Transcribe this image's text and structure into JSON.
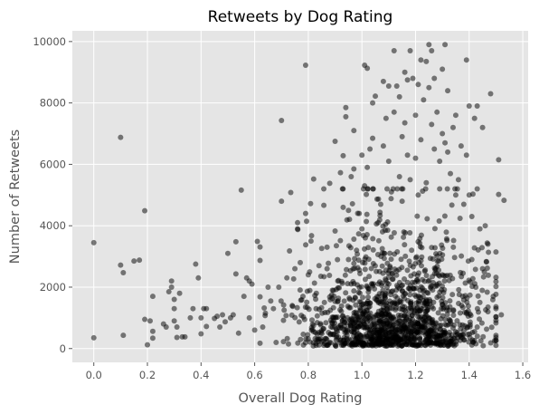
{
  "chart_data": {
    "type": "scatter",
    "title": "Retweets by Dog Rating",
    "xlabel": "Overall Dog Rating",
    "ylabel": "Number of Retweets",
    "xlim": [
      -0.08,
      1.62
    ],
    "ylim": [
      -450,
      10350
    ],
    "xticks": [
      0.0,
      0.2,
      0.4,
      0.6,
      0.8,
      1.0,
      1.2,
      1.4,
      1.6
    ],
    "xtick_labels": [
      "0.0",
      "0.2",
      "0.4",
      "0.6",
      "0.8",
      "1.0",
      "1.2",
      "1.4",
      "1.6"
    ],
    "yticks": [
      0,
      2000,
      4000,
      6000,
      8000,
      10000
    ],
    "ytick_labels": [
      "0",
      "2000",
      "4000",
      "6000",
      "8000",
      "10000"
    ],
    "grid": true,
    "colors": {
      "background": "#e5e5e5",
      "grid": "#ffffff",
      "marker": "#000000",
      "marker_alpha": 0.5
    },
    "series": [
      {
        "name": "retweets",
        "points": [
          [
            0.0,
            3450
          ],
          [
            0.0,
            350
          ],
          [
            0.1,
            6880
          ],
          [
            0.1,
            2720
          ],
          [
            0.11,
            2470
          ],
          [
            0.11,
            430
          ],
          [
            0.15,
            2850
          ],
          [
            0.17,
            2880
          ],
          [
            0.19,
            4490
          ],
          [
            0.19,
            950
          ],
          [
            0.2,
            120
          ],
          [
            0.21,
            900
          ],
          [
            0.22,
            560
          ],
          [
            0.22,
            340
          ],
          [
            0.22,
            1700
          ],
          [
            0.26,
            800
          ],
          [
            0.27,
            700
          ],
          [
            0.28,
            1850
          ],
          [
            0.29,
            2000
          ],
          [
            0.29,
            2200
          ],
          [
            0.3,
            1600
          ],
          [
            0.3,
            1300
          ],
          [
            0.3,
            900
          ],
          [
            0.31,
            360
          ],
          [
            0.31,
            700
          ],
          [
            0.32,
            1800
          ],
          [
            0.33,
            380
          ],
          [
            0.34,
            380
          ],
          [
            0.36,
            1000
          ],
          [
            0.37,
            1300
          ],
          [
            0.38,
            2750
          ],
          [
            0.39,
            2300
          ],
          [
            0.4,
            480
          ],
          [
            0.4,
            1000
          ],
          [
            0.41,
            1300
          ],
          [
            0.42,
            1300
          ],
          [
            0.42,
            720
          ],
          [
            0.45,
            980
          ],
          [
            0.46,
            1050
          ],
          [
            0.47,
            700
          ],
          [
            0.48,
            1100
          ],
          [
            0.49,
            870
          ],
          [
            0.5,
            3100
          ],
          [
            0.51,
            1000
          ],
          [
            0.52,
            1100
          ],
          [
            0.53,
            2430
          ],
          [
            0.53,
            3480
          ],
          [
            0.54,
            500
          ],
          [
            0.55,
            5160
          ],
          [
            0.56,
            1700
          ],
          [
            0.57,
            2300
          ],
          [
            0.58,
            2200
          ],
          [
            0.58,
            1000
          ],
          [
            0.59,
            2100
          ],
          [
            0.6,
            600
          ],
          [
            0.61,
            3490
          ],
          [
            0.62,
            3310
          ],
          [
            0.63,
            700
          ],
          [
            0.64,
            1150
          ],
          [
            0.65,
            2000
          ],
          [
            0.66,
            1550
          ],
          [
            0.67,
            1300
          ],
          [
            0.68,
            200
          ],
          [
            0.69,
            2000
          ],
          [
            0.7,
            4800
          ],
          [
            0.7,
            7430
          ],
          [
            0.71,
            1250
          ],
          [
            0.72,
            2300
          ],
          [
            0.73,
            3180
          ],
          [
            0.74,
            1400
          ],
          [
            0.75,
            2600
          ],
          [
            0.76,
            3900
          ],
          [
            0.76,
            4100
          ],
          [
            0.77,
            2800
          ],
          [
            0.78,
            1700
          ],
          [
            0.79,
            4400
          ],
          [
            0.79,
            9230
          ],
          [
            0.8,
            2400
          ],
          [
            0.81,
            3500
          ],
          [
            0.82,
            5520
          ],
          [
            0.83,
            1800
          ],
          [
            0.84,
            2700
          ],
          [
            0.85,
            3260
          ],
          [
            0.86,
            1500
          ],
          [
            0.87,
            3300
          ],
          [
            0.87,
            2600
          ],
          [
            0.88,
            5380
          ],
          [
            0.89,
            1900
          ],
          [
            0.9,
            3830
          ],
          [
            0.9,
            6750
          ],
          [
            0.91,
            2200
          ],
          [
            0.92,
            5730
          ],
          [
            0.93,
            6280
          ],
          [
            0.93,
            4600
          ],
          [
            0.94,
            7850
          ],
          [
            0.94,
            7550
          ],
          [
            0.95,
            2900
          ],
          [
            0.95,
            4500
          ],
          [
            0.96,
            5600
          ],
          [
            0.97,
            5850
          ],
          [
            0.97,
            7100
          ],
          [
            0.98,
            3200
          ],
          [
            0.99,
            4400
          ],
          [
            1.0,
            3900
          ],
          [
            1.0,
            6300
          ],
          [
            1.01,
            5300
          ],
          [
            1.01,
            9230
          ],
          [
            1.02,
            9130
          ],
          [
            1.02,
            5900
          ],
          [
            1.03,
            6500
          ],
          [
            1.04,
            6850
          ],
          [
            1.04,
            8000
          ],
          [
            1.05,
            8220
          ],
          [
            1.06,
            4100
          ],
          [
            1.07,
            4700
          ],
          [
            1.08,
            6600
          ],
          [
            1.08,
            8700
          ],
          [
            1.09,
            7500
          ],
          [
            1.1,
            8550
          ],
          [
            1.1,
            6100
          ],
          [
            1.11,
            5100
          ],
          [
            1.12,
            9700
          ],
          [
            1.12,
            7700
          ],
          [
            1.13,
            8550
          ],
          [
            1.14,
            8200
          ],
          [
            1.14,
            5600
          ],
          [
            1.15,
            6900
          ],
          [
            1.15,
            4800
          ],
          [
            1.16,
            7350
          ],
          [
            1.16,
            9000
          ],
          [
            1.17,
            6300
          ],
          [
            1.17,
            8750
          ],
          [
            1.18,
            9700
          ],
          [
            1.18,
            5500
          ],
          [
            1.19,
            8800
          ],
          [
            1.2,
            6200
          ],
          [
            1.2,
            7600
          ],
          [
            1.21,
            8600
          ],
          [
            1.21,
            5000
          ],
          [
            1.22,
            9400
          ],
          [
            1.22,
            6800
          ],
          [
            1.23,
            8100
          ],
          [
            1.24,
            9350
          ],
          [
            1.24,
            5400
          ],
          [
            1.25,
            9900
          ],
          [
            1.25,
            8500
          ],
          [
            1.26,
            9700
          ],
          [
            1.26,
            7300
          ],
          [
            1.27,
            6500
          ],
          [
            1.27,
            8800
          ],
          [
            1.28,
            7700
          ],
          [
            1.29,
            6100
          ],
          [
            1.29,
            5200
          ],
          [
            1.3,
            9100
          ],
          [
            1.3,
            7000
          ],
          [
            1.31,
            6700
          ],
          [
            1.31,
            9900
          ],
          [
            1.32,
            8400
          ],
          [
            1.32,
            6400
          ],
          [
            1.33,
            5700
          ],
          [
            1.34,
            7200
          ],
          [
            1.35,
            7600
          ],
          [
            1.35,
            5000
          ],
          [
            1.36,
            5500
          ],
          [
            1.37,
            6600
          ],
          [
            1.38,
            4700
          ],
          [
            1.39,
            6300
          ],
          [
            1.39,
            9400
          ],
          [
            1.4,
            7900
          ],
          [
            1.4,
            5000
          ],
          [
            1.41,
            4300
          ],
          [
            1.42,
            7500
          ],
          [
            1.43,
            7900
          ],
          [
            1.43,
            5200
          ],
          [
            1.44,
            3900
          ],
          [
            1.45,
            7200
          ],
          [
            1.45,
            2600
          ],
          [
            1.46,
            4000
          ],
          [
            1.47,
            1200
          ],
          [
            1.47,
            3400
          ],
          [
            1.48,
            8300
          ],
          [
            1.49,
            1700
          ],
          [
            1.5,
            1300
          ],
          [
            1.51,
            6150
          ],
          [
            1.51,
            5020
          ],
          [
            1.53,
            4830
          ],
          [
            1.52,
            1100
          ],
          [
            1.43,
            700
          ],
          [
            1.44,
            1500
          ],
          [
            1.41,
            2900
          ]
        ]
      }
    ],
    "dense_cluster": {
      "x_center": 1.12,
      "x_spread": 0.17,
      "y_center": 700,
      "y_spread": 1500,
      "count": 1400
    }
  }
}
